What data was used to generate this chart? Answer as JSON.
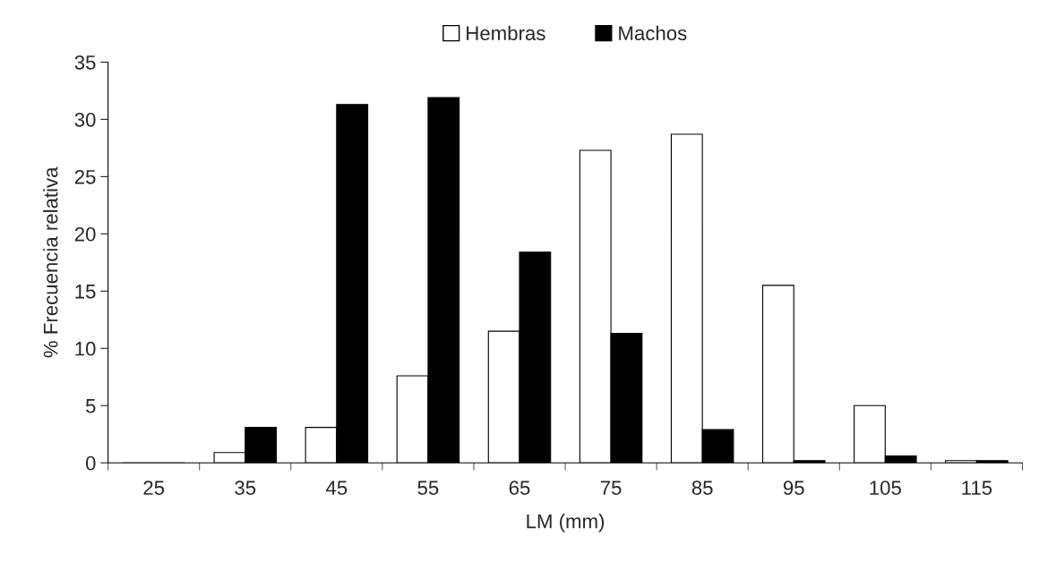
{
  "chart_data": {
    "type": "bar",
    "xlabel": "LM (mm)",
    "ylabel": "% Frecuencia relativa",
    "categories": [
      "25",
      "35",
      "45",
      "55",
      "65",
      "75",
      "85",
      "95",
      "105",
      "115"
    ],
    "series": [
      {
        "name": "Hembras",
        "color": "#ffffff",
        "values": [
          0,
          0.9,
          3.1,
          7.6,
          11.5,
          27.3,
          28.7,
          15.5,
          5.0,
          0.2
        ]
      },
      {
        "name": "Machos",
        "color": "#000000",
        "values": [
          0,
          3.1,
          31.3,
          31.9,
          18.4,
          11.3,
          2.9,
          0.2,
          0.6,
          0.2
        ]
      }
    ],
    "ylim": [
      0,
      35
    ],
    "yticks": [
      0,
      5,
      10,
      15,
      20,
      25,
      30,
      35
    ],
    "grid": false,
    "legend": "top"
  }
}
